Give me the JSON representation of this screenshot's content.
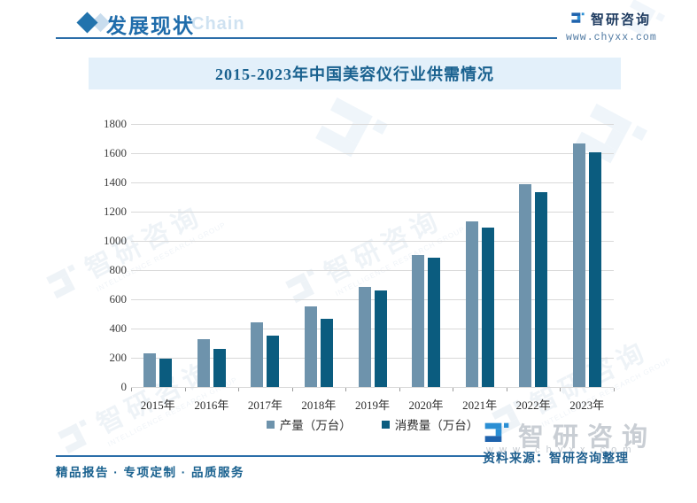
{
  "header": {
    "title": "发展现状",
    "ghost_text": "Chain",
    "logo_name": "智研咨询",
    "logo_url": "www.chyxx.com"
  },
  "banner": {
    "title": "2015-2023年中国美容仪行业供需情况"
  },
  "chart_data": {
    "type": "bar",
    "title": "2015-2023年中国美容仪行业供需情况",
    "categories": [
      "2015年",
      "2016年",
      "2017年",
      "2018年",
      "2019年",
      "2020年",
      "2021年",
      "2022年",
      "2023年"
    ],
    "series": [
      {
        "name": "产量（万台）",
        "color": "#6e93ac",
        "values": [
          231,
          328,
          441,
          553,
          686,
          901,
          1131,
          1386,
          1669
        ]
      },
      {
        "name": "消费量（万台）",
        "color": "#0b5c7f",
        "values": [
          192,
          263,
          352,
          468,
          660,
          883,
          1093,
          1336,
          1606
        ]
      }
    ],
    "xlabel": "",
    "ylabel": "",
    "ylim": [
      0,
      1800
    ],
    "ytick_step": 200,
    "grid": true,
    "legend_position": "bottom"
  },
  "footer": {
    "tagline": "精品报告 · 专项定制 · 品质服务",
    "source": "资料来源：智研咨询整理",
    "logo_name": "智研咨询",
    "logo_url": "w w w . c h y x x . c o m"
  },
  "watermark": {
    "cn": "智研咨询",
    "en": "INTELLIGENCE RESEARCH GROUP"
  },
  "colors": {
    "accent": "#2b6ea9",
    "bar_production": "#6e93ac",
    "bar_consumption": "#0b5c7f",
    "banner_bg": "#e3f0fa",
    "banner_text": "#19618f",
    "grid": "#d9d9d9",
    "footer_text": "#19618f",
    "gray_logo": "#c9ced4"
  }
}
